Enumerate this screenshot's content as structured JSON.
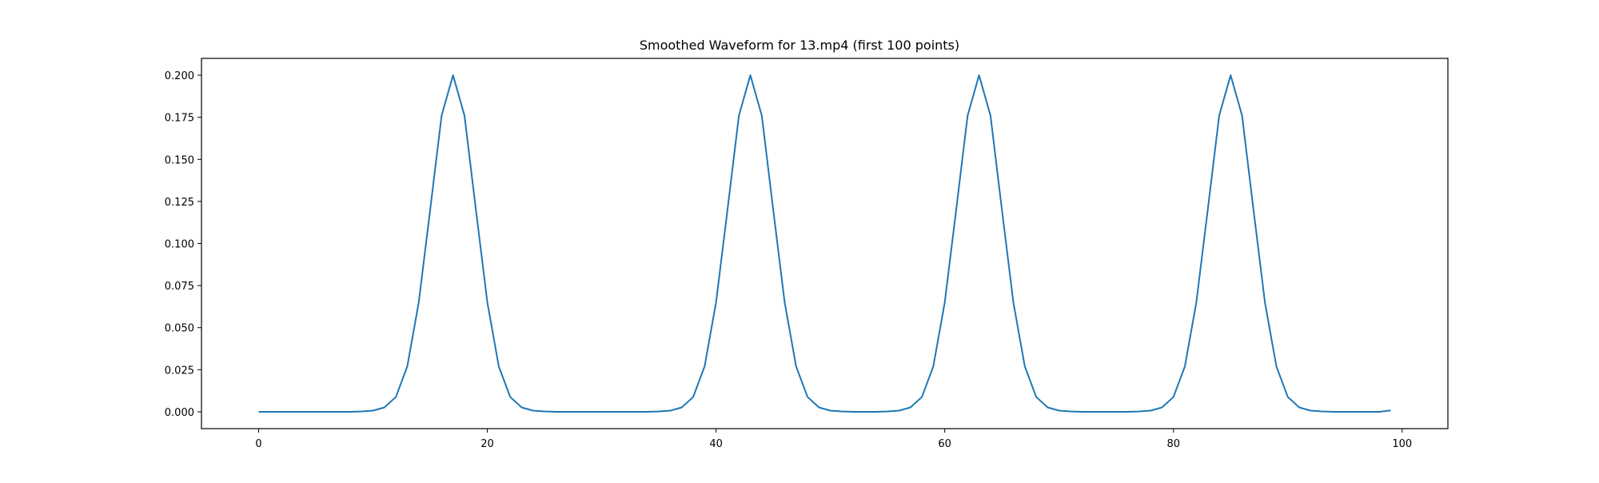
{
  "chart_data": {
    "type": "line",
    "title": "Smoothed Waveform for 13.mp4 (first 100 points)",
    "xlabel": "",
    "ylabel": "",
    "xlim": [
      -5,
      104
    ],
    "ylim": [
      -0.01,
      0.21
    ],
    "grid": false,
    "x_ticks": [
      0,
      20,
      40,
      60,
      80,
      100
    ],
    "x_tick_labels": [
      "0",
      "20",
      "40",
      "60",
      "80",
      "100"
    ],
    "y_ticks": [
      0.0,
      0.025,
      0.05,
      0.075,
      0.1,
      0.125,
      0.15,
      0.175,
      0.2
    ],
    "y_tick_labels": [
      "0.000",
      "0.025",
      "0.050",
      "0.075",
      "0.100",
      "0.125",
      "0.150",
      "0.175",
      "0.200"
    ],
    "series": [
      {
        "color": "#1f77b4",
        "x": [
          0,
          1,
          2,
          3,
          4,
          5,
          6,
          7,
          8,
          9,
          10,
          11,
          12,
          13,
          14,
          15,
          16,
          17,
          18,
          19,
          20,
          21,
          22,
          23,
          24,
          25,
          26,
          27,
          28,
          29,
          30,
          31,
          32,
          33,
          34,
          35,
          36,
          37,
          38,
          39,
          40,
          41,
          42,
          43,
          44,
          45,
          46,
          47,
          48,
          49,
          50,
          51,
          52,
          53,
          54,
          55,
          56,
          57,
          58,
          59,
          60,
          61,
          62,
          63,
          64,
          65,
          66,
          67,
          68,
          69,
          70,
          71,
          72,
          73,
          74,
          75,
          76,
          77,
          78,
          79,
          80,
          81,
          82,
          83,
          84,
          85,
          86,
          87,
          88,
          89,
          90,
          91,
          92,
          93,
          94,
          95,
          96,
          97,
          98,
          99
        ],
        "y": [
          0.0,
          0.0,
          0.0,
          0.0,
          0.0,
          0.0,
          0.0,
          0.0,
          0.0,
          0.0002,
          0.0007,
          0.0026,
          0.0088,
          0.027,
          0.065,
          0.12,
          0.176,
          0.2,
          0.176,
          0.12,
          0.065,
          0.027,
          0.0088,
          0.0026,
          0.0007,
          0.0002,
          0.0,
          0.0,
          0.0,
          0.0,
          0.0,
          0.0,
          0.0,
          0.0,
          0.0,
          0.0002,
          0.0007,
          0.0026,
          0.0088,
          0.027,
          0.065,
          0.12,
          0.176,
          0.2,
          0.176,
          0.12,
          0.065,
          0.027,
          0.0088,
          0.0026,
          0.0007,
          0.0002,
          0.0,
          0.0,
          0.0,
          0.0002,
          0.0007,
          0.0026,
          0.0088,
          0.027,
          0.065,
          0.12,
          0.176,
          0.2,
          0.176,
          0.12,
          0.065,
          0.027,
          0.0088,
          0.0026,
          0.0007,
          0.0002,
          0.0,
          0.0,
          0.0,
          0.0,
          0.0,
          0.0002,
          0.0007,
          0.0026,
          0.0088,
          0.027,
          0.065,
          0.12,
          0.176,
          0.2,
          0.176,
          0.12,
          0.065,
          0.027,
          0.0088,
          0.0026,
          0.0007,
          0.0002,
          0.0,
          0.0,
          0.0,
          0.0,
          0.0,
          0.0008
        ]
      }
    ]
  }
}
